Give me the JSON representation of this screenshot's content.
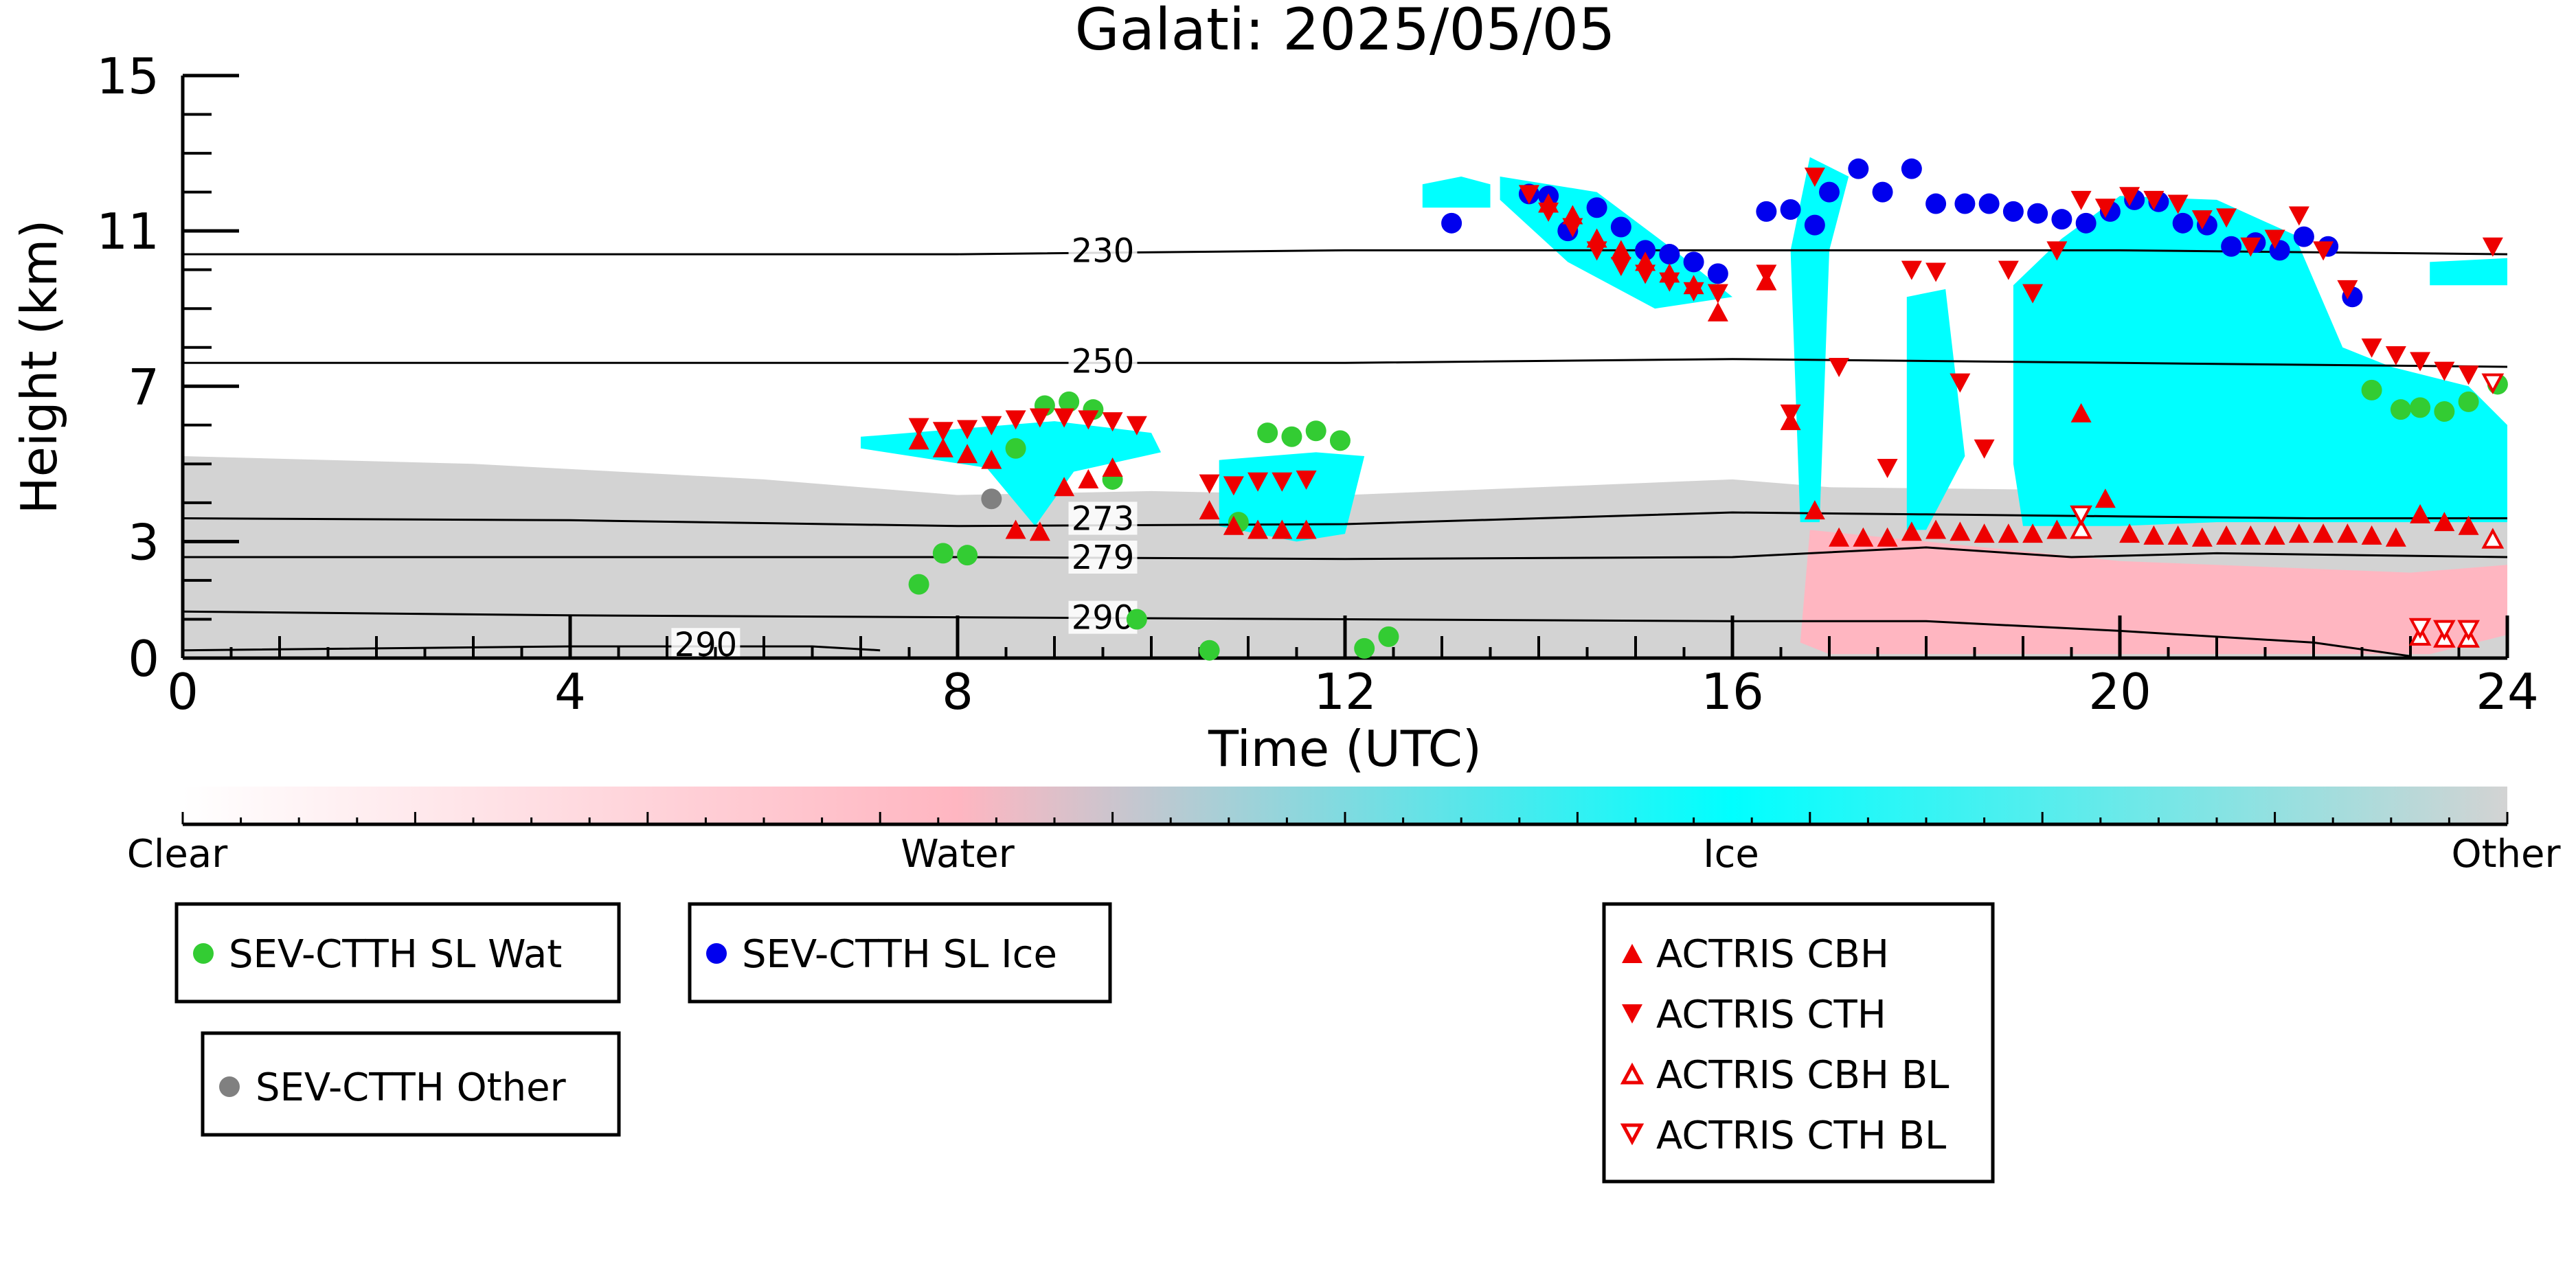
{
  "chart_data": {
    "type": "scatter",
    "title": "Galati: 2025/05/05",
    "xlabel": "Time (UTC)",
    "ylabel": "Height (km)",
    "xlim": [
      0,
      24
    ],
    "ylim": [
      0,
      15
    ],
    "xticks": [
      "0",
      "4",
      "8",
      "12",
      "16",
      "20",
      "24"
    ],
    "yticks": [
      "0",
      "3",
      "7",
      "11",
      "15"
    ],
    "colorbar": {
      "labels": [
        "Clear",
        "Water",
        "Ice",
        "Other"
      ],
      "colors": [
        "#ffffff",
        "#ffb6c1",
        "#00ffff",
        "#d3d3d3"
      ]
    },
    "contour_labels": [
      "230",
      "250",
      "273",
      "279",
      "290",
      "290"
    ],
    "contours": [
      {
        "label": "230",
        "points": [
          [
            0,
            10.4
          ],
          [
            4,
            10.4
          ],
          [
            8,
            10.4
          ],
          [
            12,
            10.5
          ],
          [
            16,
            10.5
          ],
          [
            20,
            10.5
          ],
          [
            24,
            10.4
          ]
        ],
        "label_at": [
          9.5,
          10.5
        ]
      },
      {
        "label": "250",
        "points": [
          [
            0,
            7.6
          ],
          [
            4,
            7.6
          ],
          [
            8,
            7.6
          ],
          [
            12,
            7.6
          ],
          [
            16,
            7.7
          ],
          [
            20,
            7.6
          ],
          [
            24,
            7.5
          ]
        ],
        "label_at": [
          9.5,
          7.65
        ]
      },
      {
        "label": "273",
        "points": [
          [
            0,
            3.6
          ],
          [
            4,
            3.55
          ],
          [
            8,
            3.4
          ],
          [
            12,
            3.45
          ],
          [
            14,
            3.6
          ],
          [
            16,
            3.75
          ],
          [
            18,
            3.7
          ],
          [
            20,
            3.65
          ],
          [
            22,
            3.6
          ],
          [
            24,
            3.6
          ]
        ],
        "label_at": [
          9.5,
          3.6
        ]
      },
      {
        "label": "279",
        "points": [
          [
            0,
            2.6
          ],
          [
            4,
            2.6
          ],
          [
            8,
            2.6
          ],
          [
            12,
            2.55
          ],
          [
            16,
            2.6
          ],
          [
            18,
            2.85
          ],
          [
            19.5,
            2.6
          ],
          [
            21,
            2.7
          ],
          [
            24,
            2.6
          ]
        ],
        "label_at": [
          9.5,
          2.6
        ]
      },
      {
        "label": "290",
        "points": [
          [
            0,
            1.2
          ],
          [
            4,
            1.1
          ],
          [
            8,
            1.05
          ],
          [
            12,
            1.0
          ],
          [
            16,
            0.95
          ],
          [
            18,
            0.95
          ],
          [
            20,
            0.7
          ],
          [
            22,
            0.4
          ],
          [
            23,
            0.05
          ]
        ],
        "label_at": [
          9.5,
          1.05
        ]
      },
      {
        "label": "290",
        "points": [
          [
            0,
            0.2
          ],
          [
            4,
            0.3
          ],
          [
            6.5,
            0.3
          ],
          [
            7.2,
            0.2
          ]
        ],
        "label_at": [
          5.4,
          0.35
        ]
      }
    ],
    "classification_regions": [
      {
        "class": "Other",
        "points": [
          [
            0,
            5.2
          ],
          [
            3,
            5.0
          ],
          [
            6,
            4.6
          ],
          [
            8,
            4.2
          ],
          [
            10,
            4.3
          ],
          [
            12,
            4.2
          ],
          [
            14,
            4.4
          ],
          [
            16,
            4.6
          ],
          [
            17,
            4.4
          ],
          [
            24,
            4.2
          ],
          [
            24,
            0.0
          ],
          [
            0,
            0.0
          ]
        ]
      },
      {
        "class": "Water",
        "points": [
          [
            16.7,
            0.4
          ],
          [
            16.8,
            3.3
          ],
          [
            18,
            3.0
          ],
          [
            20,
            2.5
          ],
          [
            23,
            2.2
          ],
          [
            24,
            2.4
          ],
          [
            24,
            0.6
          ],
          [
            23.2,
            0.1
          ],
          [
            17,
            0.1
          ]
        ]
      },
      {
        "class": "Ice",
        "points": [
          [
            7.0,
            5.7
          ],
          [
            8,
            5.9
          ],
          [
            9,
            6.1
          ],
          [
            10,
            5.8
          ],
          [
            10.1,
            5.3
          ],
          [
            9.2,
            4.8
          ],
          [
            8.8,
            3.4
          ],
          [
            8.3,
            4.9
          ],
          [
            7.0,
            5.4
          ]
        ]
      },
      {
        "class": "Ice",
        "points": [
          [
            10.7,
            5.1
          ],
          [
            11.7,
            5.3
          ],
          [
            12.2,
            5.2
          ],
          [
            12,
            3.2
          ],
          [
            11.5,
            3.0
          ],
          [
            10.7,
            3.4
          ]
        ]
      },
      {
        "class": "Ice",
        "points": [
          [
            12.8,
            12.2
          ],
          [
            13.2,
            12.4
          ],
          [
            13.5,
            12.2
          ],
          [
            13.5,
            11.6
          ],
          [
            12.8,
            11.6
          ]
        ]
      },
      {
        "class": "Ice",
        "points": [
          [
            13.6,
            12.4
          ],
          [
            14.6,
            12.0
          ],
          [
            15.4,
            10.5
          ],
          [
            16,
            9.3
          ],
          [
            15.2,
            9.0
          ],
          [
            14.3,
            10.2
          ],
          [
            13.6,
            11.8
          ]
        ]
      },
      {
        "class": "Ice",
        "points": [
          [
            16.6,
            10.5
          ],
          [
            16.8,
            12.9
          ],
          [
            17.2,
            12.4
          ],
          [
            17,
            10.5
          ],
          [
            16.9,
            3.5
          ],
          [
            16.7,
            3.5
          ]
        ]
      },
      {
        "class": "Ice",
        "points": [
          [
            17.8,
            9.3
          ],
          [
            18.2,
            9.5
          ],
          [
            18.4,
            5.2
          ],
          [
            18,
            3.3
          ],
          [
            17.8,
            3.3
          ]
        ]
      },
      {
        "class": "Ice",
        "points": [
          [
            18.9,
            9.6
          ],
          [
            19.4,
            10.8
          ],
          [
            20,
            11.9
          ],
          [
            21,
            11.8
          ],
          [
            21.8,
            10.9
          ],
          [
            22.3,
            8.0
          ],
          [
            22.8,
            7.5
          ],
          [
            23.6,
            7.0
          ],
          [
            24,
            6.0
          ],
          [
            24,
            3.5
          ],
          [
            21,
            3.5
          ],
          [
            20,
            3.4
          ],
          [
            19,
            3.4
          ],
          [
            18.9,
            5
          ]
        ]
      },
      {
        "class": "Ice",
        "points": [
          [
            23.2,
            10.2
          ],
          [
            24,
            10.3
          ],
          [
            24,
            9.6
          ],
          [
            23.2,
            9.6
          ]
        ]
      }
    ],
    "series": [
      {
        "name": "SEV-CTTH SL Wat",
        "marker": "circle",
        "color": "#33cc33",
        "x": [
          7.6,
          7.85,
          8.1,
          8.6,
          8.9,
          9.15,
          9.4,
          9.6,
          9.85,
          10.6,
          10.9,
          11.2,
          11.45,
          11.7,
          11.95,
          12.2,
          12.45,
          22.6,
          22.9,
          23.1,
          23.35,
          23.6,
          23.9
        ],
        "y": [
          1.9,
          2.7,
          2.65,
          5.4,
          6.5,
          6.6,
          6.4,
          4.6,
          1.0,
          0.2,
          3.5,
          5.8,
          5.7,
          5.85,
          5.6,
          0.25,
          0.55,
          6.9,
          6.4,
          6.45,
          6.35,
          6.6,
          7.05
        ]
      },
      {
        "name": "SEV-CTTH SL Ice",
        "marker": "circle",
        "color": "#0000ee",
        "x": [
          13.1,
          13.9,
          14.1,
          14.3,
          14.6,
          14.85,
          15.1,
          15.35,
          15.6,
          15.85,
          16.35,
          16.6,
          16.85,
          17.0,
          17.3,
          17.55,
          17.85,
          18.1,
          18.4,
          18.65,
          18.9,
          19.15,
          19.4,
          19.65,
          19.9,
          20.15,
          20.4,
          20.65,
          20.9,
          21.15,
          21.4,
          21.65,
          21.9,
          22.15,
          22.4
        ],
        "y": [
          11.2,
          11.95,
          11.9,
          11.0,
          11.6,
          11.1,
          10.5,
          10.4,
          10.2,
          9.9,
          11.5,
          11.55,
          11.15,
          12.0,
          12.6,
          12.0,
          12.6,
          11.7,
          11.7,
          11.7,
          11.5,
          11.45,
          11.3,
          11.2,
          11.5,
          11.8,
          11.75,
          11.2,
          11.15,
          10.6,
          10.7,
          10.5,
          10.85,
          10.6,
          9.3
        ]
      },
      {
        "name": "SEV-CTTH Other",
        "marker": "circle",
        "color": "#808080",
        "x": [
          8.35
        ],
        "y": [
          4.1
        ]
      },
      {
        "name": "ACTRIS CBH",
        "marker": "triangle-up",
        "color": "#ee0000",
        "x": [
          7.6,
          7.85,
          8.1,
          8.35,
          8.6,
          8.85,
          9.1,
          9.35,
          9.6,
          10.6,
          10.85,
          11.1,
          11.35,
          11.6,
          14.1,
          14.35,
          14.6,
          14.85,
          15.1,
          15.35,
          15.6,
          15.85,
          16.35,
          16.6,
          16.85,
          17.1,
          17.35,
          17.6,
          17.85,
          18.1,
          18.35,
          18.6,
          18.85,
          19.1,
          19.35,
          19.6,
          19.85,
          20.1,
          20.35,
          20.6,
          20.85,
          21.1,
          21.35,
          21.6,
          21.85,
          22.1,
          22.35,
          22.6,
          22.85,
          23.1,
          23.35,
          23.6
        ],
        "y": [
          5.6,
          5.4,
          5.25,
          5.1,
          3.3,
          3.25,
          4.4,
          4.6,
          4.9,
          3.8,
          3.4,
          3.3,
          3.3,
          3.3,
          11.7,
          11.4,
          10.8,
          10.5,
          10.2,
          9.9,
          9.6,
          8.9,
          9.7,
          6.1,
          3.8,
          3.1,
          3.1,
          3.1,
          3.25,
          3.3,
          3.25,
          3.2,
          3.2,
          3.2,
          3.3,
          6.3,
          4.1,
          3.2,
          3.15,
          3.15,
          3.1,
          3.15,
          3.15,
          3.15,
          3.2,
          3.2,
          3.2,
          3.15,
          3.1,
          3.7,
          3.5,
          3.4
        ]
      },
      {
        "name": "ACTRIS CTH",
        "marker": "triangle-down",
        "color": "#ee0000",
        "x": [
          7.6,
          7.85,
          8.1,
          8.35,
          8.6,
          8.85,
          9.1,
          9.35,
          9.6,
          9.85,
          10.6,
          10.85,
          11.1,
          11.35,
          11.6,
          13.9,
          14.1,
          14.35,
          14.6,
          14.85,
          15.1,
          15.35,
          15.6,
          15.85,
          16.35,
          16.6,
          16.85,
          17.1,
          17.6,
          17.85,
          18.1,
          18.35,
          18.6,
          18.85,
          19.1,
          19.35,
          19.6,
          19.85,
          20.1,
          20.35,
          20.6,
          20.85,
          21.1,
          21.35,
          21.6,
          21.85,
          22.1,
          22.35,
          22.6,
          22.85,
          23.1,
          23.35,
          23.6,
          23.85
        ],
        "y": [
          5.95,
          5.85,
          5.9,
          6.0,
          6.15,
          6.2,
          6.2,
          6.15,
          6.1,
          6.0,
          4.5,
          4.45,
          4.55,
          4.55,
          4.6,
          11.95,
          11.5,
          11.1,
          10.5,
          10.1,
          9.9,
          9.7,
          9.45,
          9.4,
          9.9,
          6.3,
          12.4,
          7.5,
          4.9,
          10.0,
          9.95,
          7.1,
          5.4,
          10.0,
          9.4,
          10.5,
          11.8,
          11.6,
          11.9,
          11.8,
          11.7,
          11.3,
          11.35,
          10.6,
          10.8,
          11.4,
          10.5,
          9.5,
          8.0,
          7.8,
          7.65,
          7.4,
          7.3,
          10.6
        ]
      },
      {
        "name": "ACTRIS CBH BL",
        "marker": "triangle-up-open",
        "color": "#ee0000",
        "x": [
          19.6,
          23.1,
          23.35,
          23.6,
          23.85
        ],
        "y": [
          3.3,
          0.55,
          0.5,
          0.5,
          3.05
        ]
      },
      {
        "name": "ACTRIS CTH BL",
        "marker": "triangle-down-open",
        "color": "#ee0000",
        "x": [
          19.6,
          23.1,
          23.35,
          23.6,
          23.85
        ],
        "y": [
          3.7,
          0.8,
          0.75,
          0.75,
          7.1
        ]
      }
    ]
  }
}
